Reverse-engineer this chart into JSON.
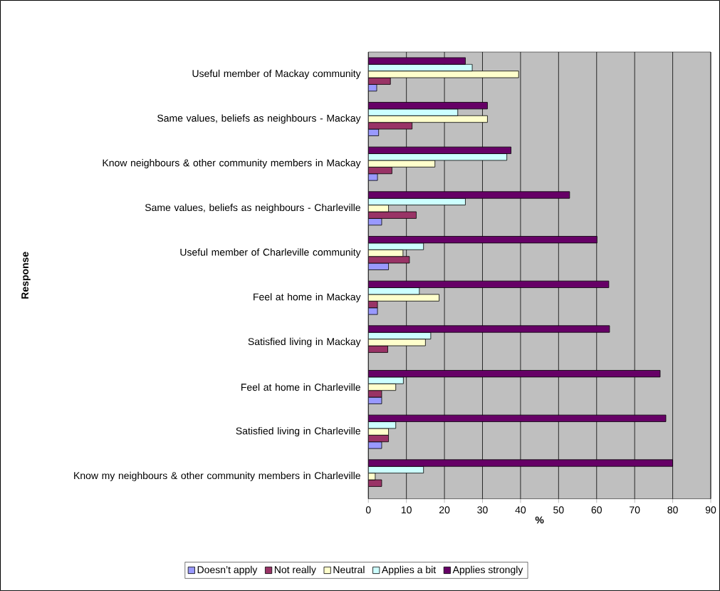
{
  "chart_data": {
    "type": "bar",
    "orientation": "horizontal",
    "xlabel": "%",
    "ylabel": "Response",
    "categories": [
      "Useful member of Mackay community",
      "Same values, beliefs as neighbours - Mackay",
      "Know neighbours & other community members in Mackay",
      "Same values, beliefs as neighbours - Charleville",
      "Useful member of Charleville community",
      "Feel at home in Mackay",
      "Satisfied living in Mackay",
      "Feel at home in Charleville",
      "Satisfied living in Charleville",
      "Know my neighbours & other community members in Charleville"
    ],
    "series": [
      {
        "name": "Doesn’t apply",
        "color": "#9999ff",
        "values": [
          2.2,
          2.7,
          2.4,
          3.5,
          5.3,
          2.4,
          null,
          3.5,
          3.5,
          null
        ]
      },
      {
        "name": "Not really",
        "color": "#993366",
        "values": [
          5.8,
          11.5,
          6.2,
          12.6,
          10.8,
          2.4,
          5.1,
          3.5,
          5.3,
          3.5
        ]
      },
      {
        "name": "Neutral",
        "color": "#ffffcc",
        "values": [
          39.5,
          31.3,
          17.5,
          5.3,
          9.1,
          18.6,
          15.0,
          7.2,
          5.3,
          1.8
        ]
      },
      {
        "name": "Applies a bit",
        "color": "#ccffff",
        "values": [
          27.3,
          23.5,
          36.4,
          25.5,
          14.5,
          13.4,
          16.4,
          9.2,
          7.2,
          14.5
        ]
      },
      {
        "name": "Applies strongly",
        "color": "#660066",
        "values": [
          25.5,
          31.3,
          37.5,
          52.9,
          60.1,
          63.2,
          63.4,
          76.7,
          78.2,
          80.0
        ]
      }
    ],
    "xlim": [
      0,
      90
    ],
    "xticks": [
      0,
      10,
      20,
      30,
      40,
      50,
      60,
      70,
      80,
      90
    ],
    "grid": "x",
    "legend": "bottom"
  }
}
